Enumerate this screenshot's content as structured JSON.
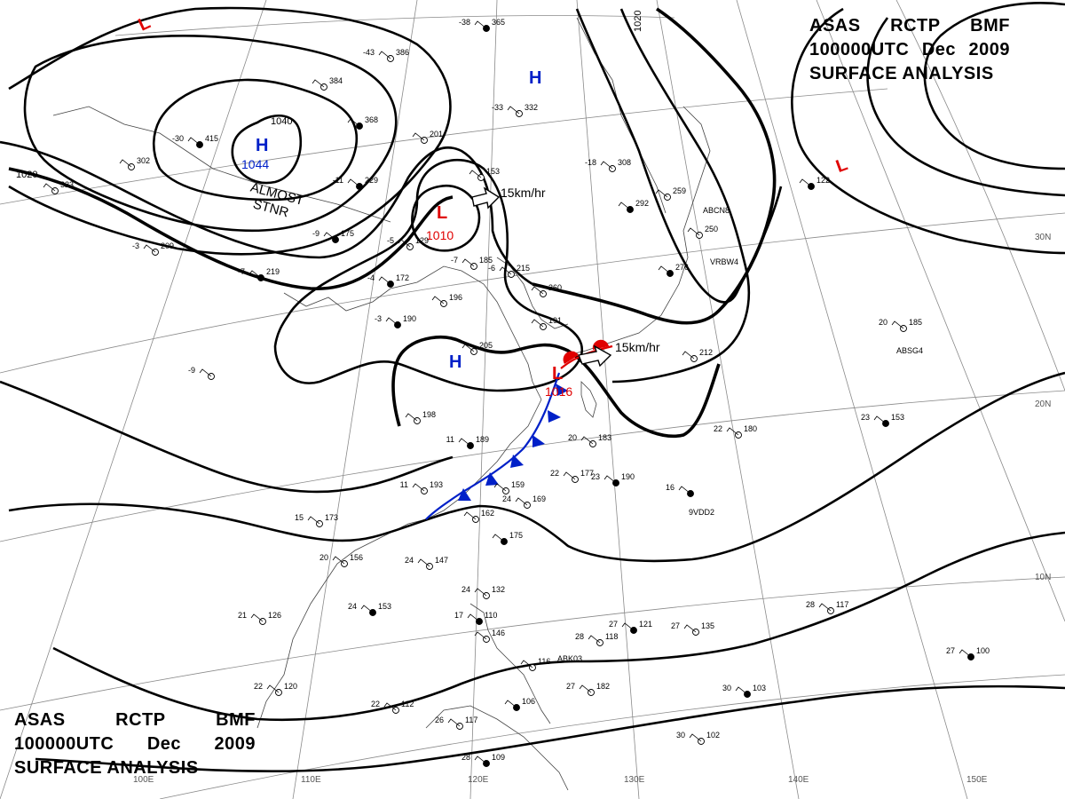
{
  "header": {
    "agency": "ASAS",
    "station": "RCTP",
    "office": "BMF",
    "datetime": "100000UTC",
    "month": "Dec",
    "year": "2009",
    "product": "SURFACE ANALYSIS"
  },
  "pressure_systems": [
    {
      "type": "H",
      "color": "#0020c8",
      "value": "1044"
    },
    {
      "type": "L",
      "color": "#e00000",
      "value": "1010"
    },
    {
      "type": "L",
      "color": "#e00000",
      "value": "1016"
    },
    {
      "type": "H",
      "color": "#0020c8",
      "value": ""
    },
    {
      "type": "H",
      "color": "#0020c8",
      "value": ""
    },
    {
      "type": "L",
      "color": "#e00000",
      "value": ""
    },
    {
      "type": "L",
      "color": "#e00000",
      "value": ""
    }
  ],
  "isobar_labels": [
    "1040",
    "1020",
    "1020"
  ],
  "annotations": {
    "high_motion": "ALMOST",
    "high_motion_2": "STNR",
    "low_motion_1": "15km/hr",
    "low_motion_2": "15km/hr"
  },
  "longitude_labels": [
    "110E",
    "120E",
    "130E",
    "140E",
    "150E",
    "100E"
  ],
  "latitude_labels": [
    "30N",
    "20N",
    "10N"
  ],
  "ship_callsigns": [
    "ABCN8",
    "VRBW4",
    "ABSG4",
    "9VDD2",
    "ABK03"
  ],
  "station_plots": [
    {
      "t": "-38",
      "p": "365"
    },
    {
      "t": "-43",
      "p": "386"
    },
    {
      "t": "",
      "p": "384"
    },
    {
      "t": "-30",
      "p": "415"
    },
    {
      "t": "",
      "p": "302"
    },
    {
      "t": "",
      "p": "323"
    },
    {
      "t": "",
      "p": "368"
    },
    {
      "t": "-33",
      "p": "332"
    },
    {
      "t": "",
      "p": "201"
    },
    {
      "t": "-11",
      "p": "229"
    },
    {
      "t": "",
      "p": "153"
    },
    {
      "t": "-18",
      "p": "308"
    },
    {
      "t": "-9",
      "p": "175"
    },
    {
      "t": "-5",
      "p": "129"
    },
    {
      "t": "-3",
      "p": "209"
    },
    {
      "t": "-7",
      "p": "219"
    },
    {
      "t": "-7",
      "p": "185"
    },
    {
      "t": "-6",
      "p": "215"
    },
    {
      "t": "-4",
      "p": "172"
    },
    {
      "t": "",
      "p": "196"
    },
    {
      "t": "",
      "p": "260"
    },
    {
      "t": "-3",
      "p": "190"
    },
    {
      "t": "",
      "p": "205"
    },
    {
      "t": "",
      "p": "191"
    },
    {
      "t": "",
      "p": "292"
    },
    {
      "t": "",
      "p": "259"
    },
    {
      "t": "",
      "p": "250"
    },
    {
      "t": "",
      "p": "276"
    },
    {
      "t": "20",
      "p": "185"
    },
    {
      "t": "",
      "p": "212"
    },
    {
      "t": "",
      "p": "122"
    },
    {
      "t": "-9",
      "p": ""
    },
    {
      "t": "",
      "p": "198"
    },
    {
      "t": "11",
      "p": "189"
    },
    {
      "t": "20",
      "p": "183"
    },
    {
      "t": "22",
      "p": "180"
    },
    {
      "t": "23",
      "p": "153"
    },
    {
      "t": "11",
      "p": "193"
    },
    {
      "t": "22",
      "p": "177"
    },
    {
      "t": "23",
      "p": "190"
    },
    {
      "t": "",
      "p": "159"
    },
    {
      "t": "24",
      "p": "169"
    },
    {
      "t": "16",
      "p": ""
    },
    {
      "t": "15",
      "p": "173"
    },
    {
      "t": "",
      "p": "162"
    },
    {
      "t": "",
      "p": "175"
    },
    {
      "t": "24",
      "p": "147"
    },
    {
      "t": "20",
      "p": "156"
    },
    {
      "t": "24",
      "p": "153"
    },
    {
      "t": "21",
      "p": "126"
    },
    {
      "t": "24",
      "p": "132"
    },
    {
      "t": "17",
      "p": "110"
    },
    {
      "t": "",
      "p": "146"
    },
    {
      "t": "28",
      "p": "118"
    },
    {
      "t": "27",
      "p": "121"
    },
    {
      "t": "27",
      "p": "135"
    },
    {
      "t": "28",
      "p": "117"
    },
    {
      "t": "27",
      "p": "100"
    },
    {
      "t": "",
      "p": "116"
    },
    {
      "t": "27",
      "p": "182"
    },
    {
      "t": "30",
      "p": "103"
    },
    {
      "t": "22",
      "p": "120"
    },
    {
      "t": "22",
      "p": "112"
    },
    {
      "t": "",
      "p": "106"
    },
    {
      "t": "26",
      "p": "117"
    },
    {
      "t": "30",
      "p": "102"
    },
    {
      "t": "28",
      "p": "109"
    }
  ]
}
